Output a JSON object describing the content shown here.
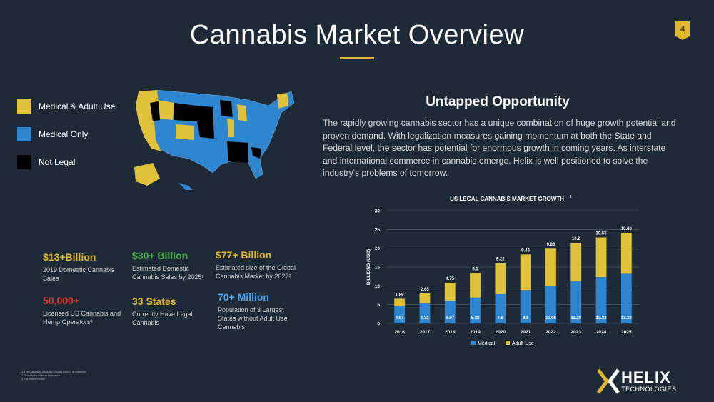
{
  "title": "Cannabis Market Overview",
  "page_number": "4",
  "legend": [
    {
      "label": "Medical & Adult Use",
      "color": "#e0c33a"
    },
    {
      "label": "Medical Only",
      "color": "#2f86d0"
    },
    {
      "label": "Not Legal",
      "color": "#000000"
    }
  ],
  "heading": "Untapped Opportunity",
  "paragraph": "The rapidly growing cannabis sector has a unique combination of huge growth potential and proven demand. With legalization measures gaining momentum at both the State and Federal level, the sector has potential for enormous growth in coming years. As interstate and international commerce in cannabis emerge, Helix is well positioned to solve the industry's problems of tomorrow.",
  "stats": [
    {
      "value": "$13+Billion",
      "desc": "2019 Domestic Cannabis Sales",
      "color": "#e0b62a"
    },
    {
      "value": "$30+ Billion",
      "desc": "Estimated Domestic Cannabis Sales by 2025²",
      "color": "#4caf50"
    },
    {
      "value": "$77+ Billion",
      "desc": "Estimated size of the Global Cannabis Market by 2027²",
      "color": "#e0b62a"
    },
    {
      "value": "50,000+",
      "desc": "Licensed US Cannabis and Hemp Operators³",
      "color": "#e53935"
    },
    {
      "value": "33 States",
      "desc": "Currently Have Legal Cannabis",
      "color": "#e0b62a"
    },
    {
      "value": "70+ Million",
      "desc": "Population of 3 Largest States without Adult Use Cannabis",
      "color": "#42a5f5"
    }
  ],
  "chart_data": {
    "type": "bar",
    "stacked": true,
    "title": "US LEGAL CANNABIS MARKET GROWTH",
    "title_superscript": "1",
    "ylabel": "BILLIONS (USD)",
    "xlabel": "",
    "ylim": [
      0,
      30
    ],
    "yticks": [
      0,
      5,
      10,
      15,
      20,
      25,
      30
    ],
    "categories": [
      "2016",
      "2017",
      "2018",
      "2019",
      "2020",
      "2021",
      "2022",
      "2023",
      "2024",
      "2025"
    ],
    "series": [
      {
        "name": "Medical",
        "color": "#2f86d0",
        "values": [
          4.67,
          5.32,
          6.07,
          6.88,
          7.8,
          8.9,
          10.06,
          11.26,
          12.33,
          13.22
        ]
      },
      {
        "name": "Adult-Use",
        "color": "#e0c33a",
        "values": [
          1.89,
          2.65,
          4.75,
          6.5,
          8.22,
          9.46,
          9.83,
          10.2,
          10.55,
          10.86
        ]
      }
    ],
    "grid": true,
    "legend_position": "bottom"
  },
  "footnotes": [
    "1 The Cannabis Industry Annual Report & Statistics",
    "2 Grandview Market Research",
    "3 Cannabis Media"
  ],
  "logo": {
    "brand": "HELIX",
    "sub": "TECHNOLOGIES"
  }
}
